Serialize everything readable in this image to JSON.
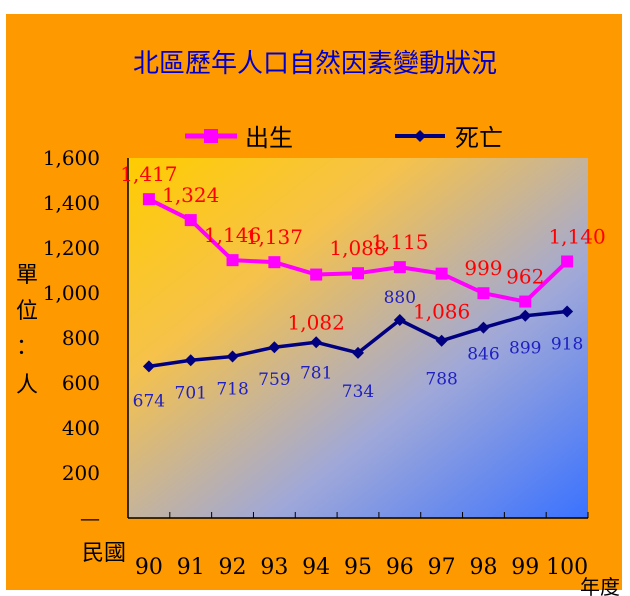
{
  "chart_data": {
    "type": "line",
    "title": "北區歷年人口自然因素變動狀況",
    "ylabel": "單位：人",
    "x_axis_prefix": "民國",
    "xlabel": "年度",
    "ylim": [
      0,
      1600
    ],
    "yticks": [
      "—",
      "200",
      "400",
      "600",
      "800",
      "1,000",
      "1,200",
      "1,400",
      "1,600"
    ],
    "categories": [
      "90",
      "91",
      "92",
      "93",
      "94",
      "95",
      "96",
      "97",
      "98",
      "99",
      "100"
    ],
    "legend_position": "top",
    "series": [
      {
        "name": "出生",
        "color": "#ff00ff",
        "label_color": "#ff0000",
        "marker": "square",
        "values": [
          1417,
          1324,
          1146,
          1137,
          1082,
          1088,
          1115,
          1086,
          999,
          962,
          1140
        ],
        "labels": [
          "1,417",
          "1,324",
          "1,146",
          "1,137",
          "1,082",
          "1,088",
          "1,115",
          "1,086",
          "999",
          "962",
          "1,140"
        ]
      },
      {
        "name": "死亡",
        "color": "#000080",
        "label_color": "#2020c0",
        "marker": "diamond",
        "values": [
          674,
          701,
          718,
          759,
          781,
          734,
          880,
          788,
          846,
          899,
          918
        ],
        "labels": [
          "674",
          "701",
          "718",
          "759",
          "781",
          "734",
          "880",
          "788",
          "846",
          "899",
          "918"
        ]
      }
    ],
    "colors": {
      "frame_bg": "#ff9900",
      "title_color": "#0000cc"
    }
  }
}
